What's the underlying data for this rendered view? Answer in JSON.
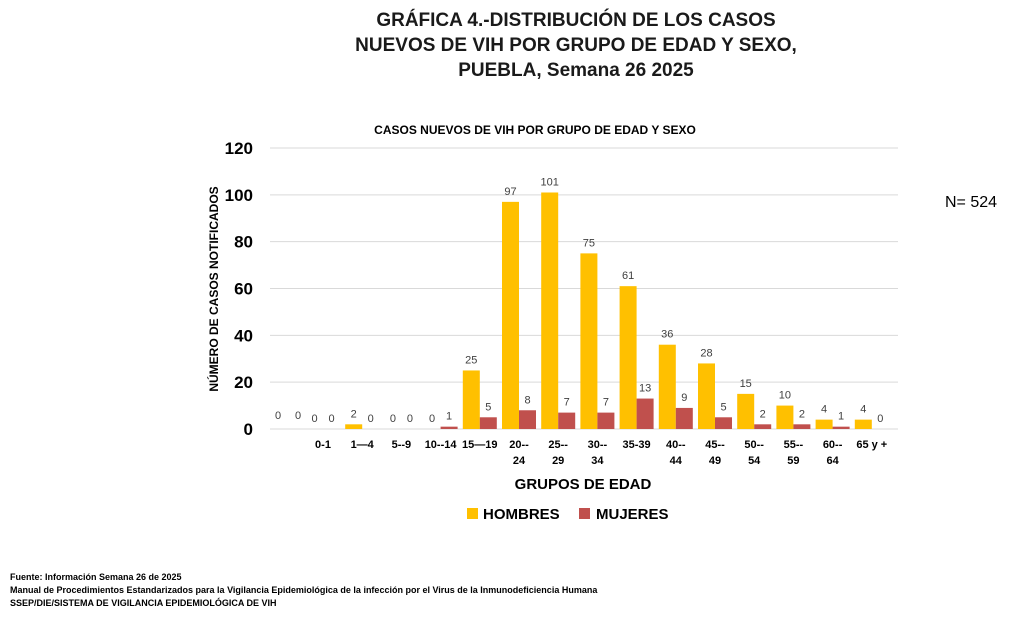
{
  "page": {
    "title_lines": [
      "GRÁFICA 4.-DISTRIBUCIÓN DE LOS CASOS",
      "NUEVOS DE VIH POR GRUPO DE EDAD Y SEXO,",
      "PUEBLA, Semana 26  2025"
    ],
    "n_note": "N= 524",
    "footer_lines": [
      "Fuente: Información Semana 26 de 2025",
      "Manual de Procedimientos Estandarizados para la Vigilancia Epidemiológica de la infección por el Virus de la Inmunodeficiencia Humana",
      "SSEP/DIE/SISTEMA DE VIGILANCIA EPIDEMIOLÓGICA DE VIH"
    ]
  },
  "chart_data": {
    "type": "bar",
    "title": "CASOS NUEVOS DE VIH POR GRUPO DE EDAD Y SEXO",
    "xlabel": "GRUPOS DE EDAD",
    "ylabel": "NÚMERO DE CASOS NOTIFICADOS",
    "ylim": [
      0,
      120
    ],
    "yticks": [
      0,
      20,
      40,
      60,
      80,
      100,
      120
    ],
    "grid": true,
    "legend_position": "bottom",
    "categories": [
      [
        "0-1"
      ],
      [
        "1—4"
      ],
      [
        "5--9"
      ],
      [
        "10--14"
      ],
      [
        "15—19"
      ],
      [
        "20--",
        "24"
      ],
      [
        "25--",
        "29"
      ],
      [
        "30--",
        "34"
      ],
      [
        "35-39"
      ],
      [
        "40--",
        "44"
      ],
      [
        "45--",
        "49"
      ],
      [
        "50--",
        "54"
      ],
      [
        "55--",
        "59"
      ],
      [
        "60--",
        "64"
      ],
      [
        "65 y +"
      ]
    ],
    "leading_labels": [
      "0",
      "0"
    ],
    "series": [
      {
        "name": "HOMBRES",
        "color": "#ffc000",
        "values": [
          0,
          2,
          0,
          0,
          25,
          97,
          101,
          75,
          61,
          36,
          28,
          15,
          10,
          4,
          4
        ]
      },
      {
        "name": "MUJERES",
        "color": "#c0504d",
        "values": [
          0,
          0,
          0,
          1,
          5,
          8,
          7,
          7,
          13,
          9,
          5,
          2,
          2,
          1,
          0
        ]
      }
    ]
  }
}
